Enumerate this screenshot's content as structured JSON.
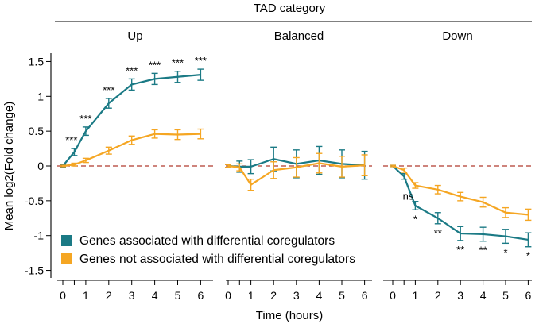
{
  "chart_data": {
    "type": "line",
    "title": "TAD category",
    "xlabel": "Time (hours)",
    "ylabel": "Mean log2(Fold change)",
    "ylim": [
      -1.6,
      1.6
    ],
    "yticks": [
      1.5,
      1,
      0.5,
      0,
      -0.5,
      -1,
      -1.5
    ],
    "ytick_labels": [
      "1.5",
      "1",
      "0.5",
      "0",
      "-0.5",
      "-1",
      "-1.5"
    ],
    "x": [
      0,
      0.5,
      1,
      2,
      3,
      4,
      5,
      6
    ],
    "xticks": [
      0,
      1,
      2,
      3,
      4,
      5,
      6
    ],
    "xtick_labels": [
      "0",
      "1",
      "2",
      "3",
      "4",
      "5",
      "6"
    ],
    "reference_line": 0,
    "colors": {
      "associated": "#1b7a85",
      "not_associated": "#f5a623",
      "reference": "#b03a2e"
    },
    "legend": {
      "placement": "bottom-left",
      "entries": [
        "Genes associated with differential coregulators",
        "Genes not associated with differential coregulators"
      ]
    },
    "panels": [
      {
        "title": "Up",
        "series": [
          {
            "name": "Genes associated with differential coregulators",
            "values": [
              0,
              0.2,
              0.5,
              0.9,
              1.17,
              1.25,
              1.28,
              1.31
            ],
            "errors": [
              0.02,
              0.05,
              0.06,
              0.07,
              0.08,
              0.08,
              0.08,
              0.08
            ]
          },
          {
            "name": "Genes not associated with differential coregulators",
            "values": [
              0,
              0.02,
              0.08,
              0.22,
              0.37,
              0.46,
              0.45,
              0.46
            ],
            "errors": [
              0.01,
              0.02,
              0.03,
              0.05,
              0.06,
              0.06,
              0.07,
              0.07
            ]
          }
        ],
        "annotations": [
          {
            "x": 0.5,
            "text": "***",
            "anchor": "left"
          },
          {
            "x": 1,
            "text": "***"
          },
          {
            "x": 2,
            "text": "***"
          },
          {
            "x": 3,
            "text": "***"
          },
          {
            "x": 4,
            "text": "***"
          },
          {
            "x": 5,
            "text": "***"
          },
          {
            "x": 6,
            "text": "***"
          }
        ]
      },
      {
        "title": "Balanced",
        "series": [
          {
            "name": "Genes associated with differential coregulators",
            "values": [
              0,
              -0.01,
              -0.01,
              0.1,
              0.03,
              0.08,
              0.03,
              0.01
            ],
            "errors": [
              0.02,
              0.08,
              0.1,
              0.17,
              0.2,
              0.2,
              0.2,
              0.2
            ]
          },
          {
            "name": "Genes not associated with differential coregulators",
            "values": [
              0,
              -0.02,
              -0.27,
              -0.06,
              -0.02,
              0.04,
              -0.01,
              0.01
            ],
            "errors": [
              0.02,
              0.05,
              0.08,
              0.12,
              0.14,
              0.14,
              0.15,
              0.15
            ]
          }
        ],
        "annotations": []
      },
      {
        "title": "Down",
        "series": [
          {
            "name": "Genes associated with differential coregulators",
            "values": [
              0,
              -0.15,
              -0.57,
              -0.75,
              -0.97,
              -0.98,
              -1.01,
              -1.06
            ],
            "errors": [
              0.01,
              0.04,
              0.06,
              0.08,
              0.1,
              0.1,
              0.1,
              0.1
            ]
          },
          {
            "name": "Genes not associated with differential coregulators",
            "values": [
              0,
              -0.06,
              -0.28,
              -0.34,
              -0.44,
              -0.52,
              -0.67,
              -0.7
            ],
            "errors": [
              0.01,
              0.03,
              0.04,
              0.06,
              0.06,
              0.07,
              0.07,
              0.08
            ]
          }
        ],
        "annotations": [
          {
            "x": 1,
            "text": "ns",
            "anchor": "left-above"
          },
          {
            "x": 1,
            "text": "*"
          },
          {
            "x": 2,
            "text": "**"
          },
          {
            "x": 3,
            "text": "**"
          },
          {
            "x": 4,
            "text": "**"
          },
          {
            "x": 5,
            "text": "*"
          },
          {
            "x": 6,
            "text": "*"
          }
        ]
      }
    ]
  }
}
